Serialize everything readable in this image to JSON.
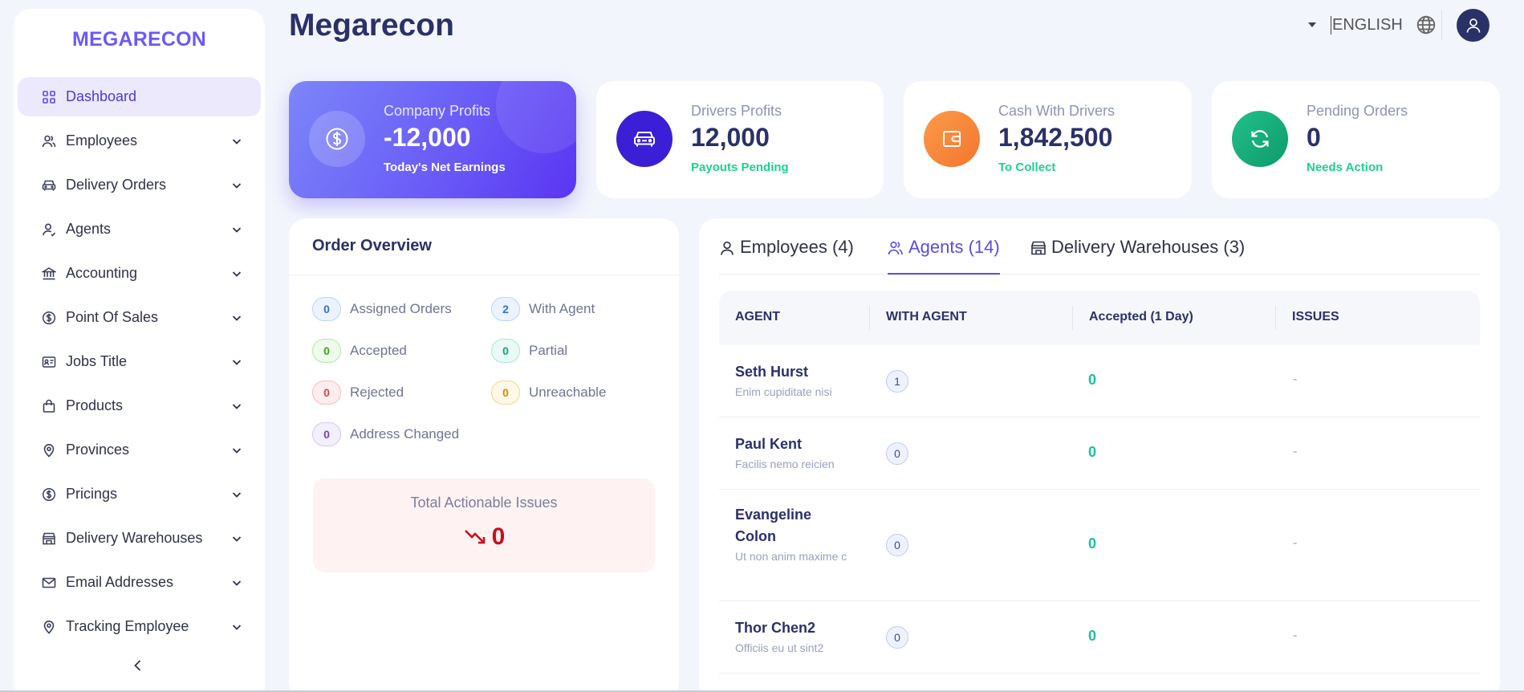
{
  "brand": "MEGARECON",
  "sidebar": {
    "items": [
      {
        "label": "Dashboard",
        "icon": "grid-icon",
        "active": true
      },
      {
        "label": "Employees",
        "icon": "users-icon"
      },
      {
        "label": "Delivery Orders",
        "icon": "car-icon"
      },
      {
        "label": "Agents",
        "icon": "user-icon"
      },
      {
        "label": "Accounting",
        "icon": "bank-icon"
      },
      {
        "label": "Point Of Sales",
        "icon": "dollar-icon"
      },
      {
        "label": "Jobs Title",
        "icon": "id-card-icon"
      },
      {
        "label": "Products",
        "icon": "bag-icon"
      },
      {
        "label": "Provinces",
        "icon": "location-icon"
      },
      {
        "label": "Pricings",
        "icon": "dollar-icon"
      },
      {
        "label": "Delivery Warehouses",
        "icon": "store-icon"
      },
      {
        "label": "Email Addresses",
        "icon": "mail-icon"
      },
      {
        "label": "Tracking Employee",
        "icon": "location-icon"
      }
    ]
  },
  "header": {
    "title": "Megarecon",
    "language": "ENGLISH"
  },
  "stats": [
    {
      "title": "Company Profits",
      "value": "-12,000",
      "sub": "Today's Net Earnings",
      "icon": "dollar-icon",
      "color": "#6a5cf7"
    },
    {
      "title": "Drivers Profits",
      "value": "12,000",
      "sub": "Payouts Pending",
      "icon": "car-icon",
      "color": "#3b1fd6"
    },
    {
      "title": "Cash With Drivers",
      "value": "1,842,500",
      "sub": "To Collect",
      "icon": "wallet-icon",
      "color": "#f58a3c"
    },
    {
      "title": "Pending Orders",
      "value": "0",
      "sub": "Needs Action",
      "icon": "refresh-icon",
      "color": "#10b981"
    }
  ],
  "overview": {
    "title": "Order Overview",
    "items": [
      {
        "count": "0",
        "label": "Assigned Orders",
        "tone": "blue"
      },
      {
        "count": "2",
        "label": "With Agent",
        "tone": "blue"
      },
      {
        "count": "0",
        "label": "Accepted",
        "tone": "green"
      },
      {
        "count": "0",
        "label": "Partial",
        "tone": "teal"
      },
      {
        "count": "0",
        "label": "Rejected",
        "tone": "red"
      },
      {
        "count": "0",
        "label": "Unreachable",
        "tone": "yellow"
      },
      {
        "count": "0",
        "label": "Address Changed",
        "tone": "purple"
      }
    ],
    "issues_label": "Total Actionable Issues",
    "issues_value": "0"
  },
  "tabs": [
    {
      "label": "Employees (4)",
      "icon": "user-icon"
    },
    {
      "label": "Agents (14)",
      "icon": "users-icon",
      "active": true
    },
    {
      "label": "Delivery Warehouses (3)",
      "icon": "store-icon"
    }
  ],
  "table": {
    "headers": [
      "AGENT",
      "WITH AGENT",
      "Accepted (1 Day)",
      "ISSUES"
    ],
    "rows": [
      {
        "name": "Seth Hurst",
        "sub": "Enim cupiditate nisi",
        "with_agent": "1",
        "accepted": "0",
        "issues": "-"
      },
      {
        "name": "Paul Kent",
        "sub": "Facilis nemo reicien",
        "with_agent": "0",
        "accepted": "0",
        "issues": "-"
      },
      {
        "name": "Evangeline Colon",
        "sub": "Ut non anim maxime c",
        "with_agent": "0",
        "accepted": "0",
        "issues": "-"
      },
      {
        "name": "Thor Chen2",
        "sub": "Officiis eu ut sint2",
        "with_agent": "0",
        "accepted": "0",
        "issues": "-"
      }
    ]
  }
}
